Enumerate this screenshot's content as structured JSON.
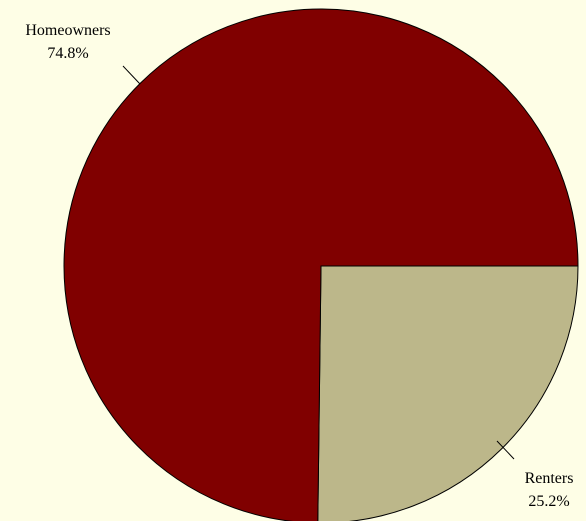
{
  "chart_data": {
    "type": "pie",
    "slices": [
      {
        "name": "Homeowners",
        "percent_label": "74.8%",
        "value": 74.8,
        "color": "#800000"
      },
      {
        "name": "Renters",
        "percent_label": "25.2%",
        "value": 25.2,
        "color": "#bcb78a"
      }
    ],
    "background": "#fefee6",
    "legend": "none"
  }
}
